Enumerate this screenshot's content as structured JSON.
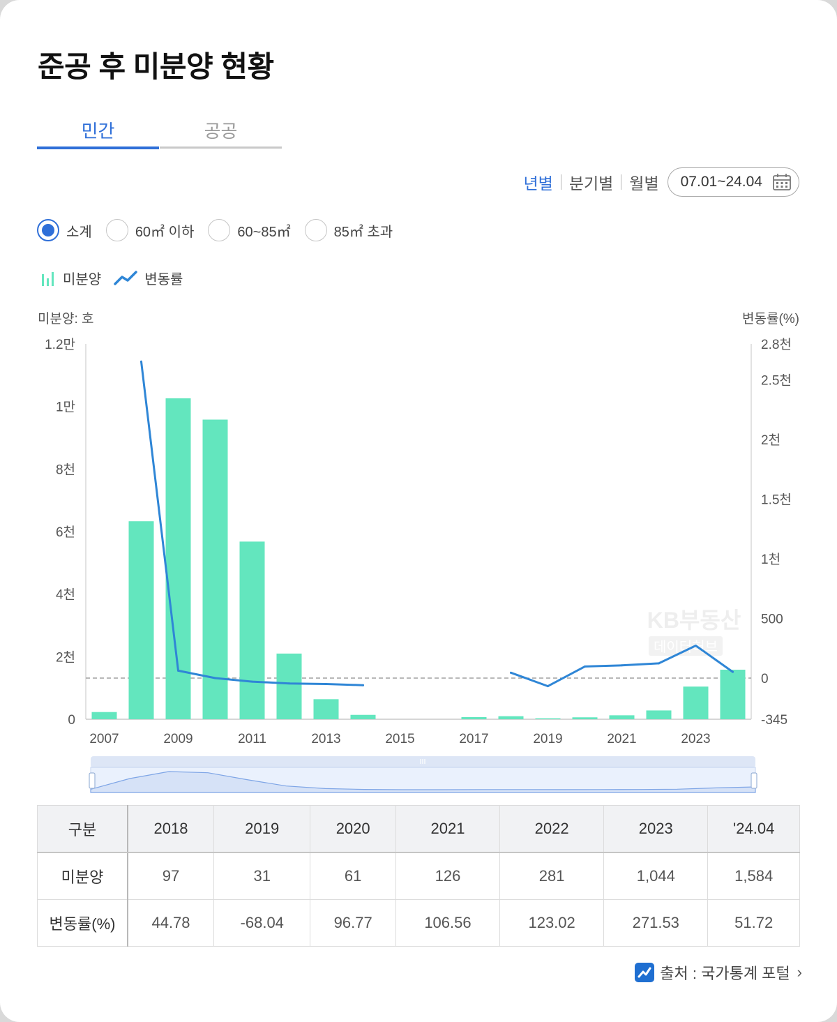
{
  "title": "준공 후 미분양 현황",
  "tabs": [
    {
      "label": "민간",
      "active": true
    },
    {
      "label": "공공",
      "active": false
    }
  ],
  "period": {
    "options": [
      "년별",
      "분기별",
      "월별"
    ],
    "selected": "년별",
    "range": "07.01~24.04"
  },
  "size_filters": [
    {
      "label": "소계",
      "selected": true
    },
    {
      "label": "60㎡ 이하",
      "selected": false
    },
    {
      "label": "60~85㎡",
      "selected": false
    },
    {
      "label": "85㎡ 초과",
      "selected": false
    }
  ],
  "legend": {
    "bar_label": "미분양",
    "line_label": "변동률"
  },
  "units": {
    "left": "미분양: 호",
    "right": "변동률(%)"
  },
  "watermark": {
    "line1": "KB부동산",
    "line2": "데이터허브"
  },
  "colors": {
    "bar": "#63e6be",
    "line": "#2f86d6",
    "accent": "#2f6fd8"
  },
  "chart_data": {
    "type": "bar",
    "x": [
      "2007",
      "2008",
      "2009",
      "2010",
      "2011",
      "2012",
      "2013",
      "2014",
      "2015",
      "2016",
      "2017",
      "2018",
      "2019",
      "2020",
      "2021",
      "2022",
      "2023",
      "'24.04"
    ],
    "x_tick_labels": [
      "2007",
      "2009",
      "2011",
      "2013",
      "2015",
      "2017",
      "2019",
      "2021",
      "2023"
    ],
    "series": [
      {
        "name": "미분양",
        "type": "bar",
        "axis": "left",
        "values": [
          230,
          6330,
          10260,
          9580,
          5680,
          2100,
          640,
          140,
          0,
          0,
          67,
          97,
          31,
          61,
          126,
          281,
          1044,
          1584
        ]
      },
      {
        "name": "변동률",
        "type": "line",
        "axis": "right",
        "values": [
          null,
          2652,
          62,
          0,
          -30,
          -45,
          -50,
          -60,
          null,
          null,
          null,
          44.78,
          -68.04,
          96.77,
          106.56,
          123.02,
          271.53,
          51.72
        ]
      }
    ],
    "left_axis": {
      "ticks": [
        0,
        2000,
        4000,
        6000,
        8000,
        10000,
        12000
      ],
      "tick_labels": [
        "0",
        "2천",
        "4천",
        "6천",
        "8천",
        "1만",
        "1.2만"
      ],
      "ylim": [
        0,
        12000
      ]
    },
    "right_axis": {
      "ticks": [
        -345,
        0,
        500,
        1000,
        1500,
        2000,
        2500,
        2800
      ],
      "tick_labels": [
        "-345",
        "0",
        "500",
        "1천",
        "1.5천",
        "2천",
        "2.5천",
        "2.8천"
      ],
      "ylim": [
        -345,
        2800
      ]
    },
    "zero_line": "dashed"
  },
  "table": {
    "headers": [
      "구분",
      "2018",
      "2019",
      "2020",
      "2021",
      "2022",
      "2023",
      "'24.04"
    ],
    "rows": [
      {
        "label": "미분양",
        "values": [
          "97",
          "31",
          "61",
          "126",
          "281",
          "1,044",
          "1,584"
        ]
      },
      {
        "label": "변동률(%)",
        "values": [
          "44.78",
          "-68.04",
          "96.77",
          "106.56",
          "123.02",
          "271.53",
          "51.72"
        ]
      }
    ]
  },
  "source": {
    "label": "출처 : 국가통계 포털"
  }
}
